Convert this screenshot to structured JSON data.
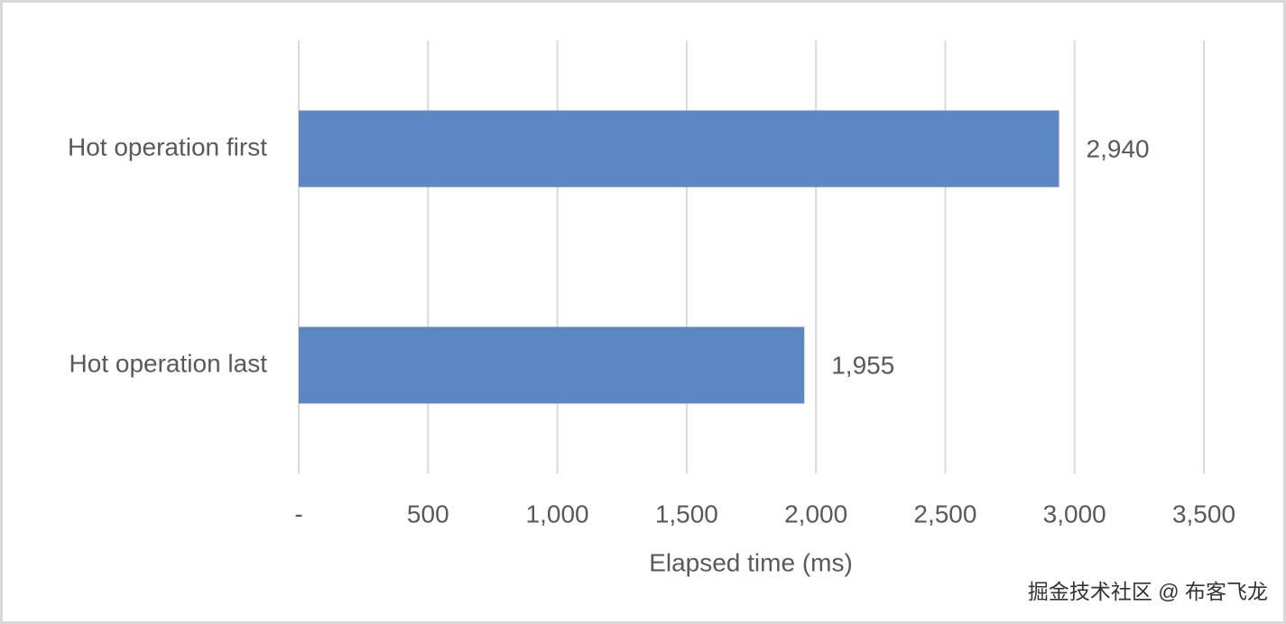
{
  "chart_data": {
    "type": "bar",
    "orientation": "horizontal",
    "categories": [
      "Hot operation first",
      "Hot operation last"
    ],
    "values": [
      2940,
      1955
    ],
    "value_labels": [
      "2,940",
      "1,955"
    ],
    "color": "#5b87c5",
    "xlim": [
      0,
      3500
    ],
    "xticks": [
      {
        "value": 0,
        "label": "-"
      },
      500,
      {
        "value": 1000,
        "label": "1,000"
      },
      {
        "value": 1500,
        "label": "1,500"
      },
      {
        "value": 2000,
        "label": "2,000"
      },
      {
        "value": 2500,
        "label": "2,500"
      },
      {
        "value": 3000,
        "label": "3,000"
      },
      {
        "value": 3500,
        "label": "3,500"
      }
    ],
    "xlabel": "Elapsed time (ms)",
    "grid": true,
    "watermark": "掘金技术社区 @ 布客飞龙"
  }
}
